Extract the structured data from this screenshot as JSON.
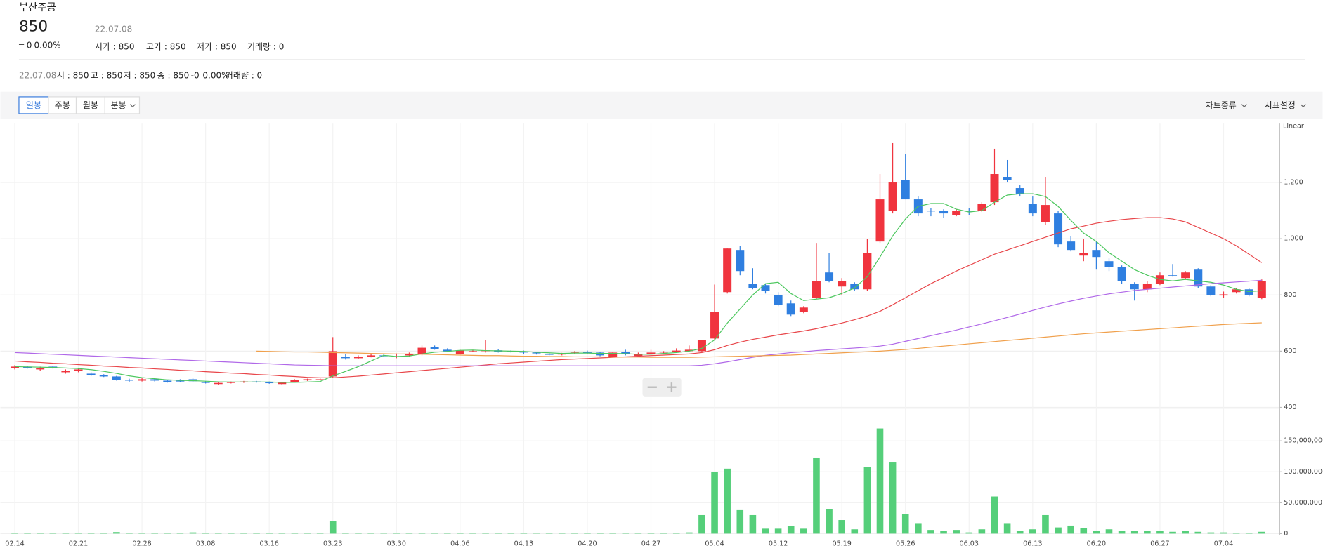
{
  "header": {
    "name": "부산주공",
    "price": "850",
    "change": "0",
    "change_rate": "0.00%",
    "date": "22.07.08",
    "items": [
      "시가 : 850",
      "고가 : 850",
      "저가 : 850",
      "거래량 : 0"
    ]
  },
  "summary": {
    "date": "22.07.08",
    "items": [
      "시 : 850",
      "고 : 850",
      "저 : 850",
      "종 : 850",
      "-0",
      "0.00%",
      "거래량 : 0"
    ]
  },
  "toolbar": {
    "tabs": [
      "일봉",
      "주봉",
      "월봉",
      "분봉"
    ],
    "menus": [
      "차트종류",
      "지표설정"
    ]
  },
  "chart_data": {
    "type": "candlestick",
    "scale_label": "Linear",
    "categories": [
      "02.14",
      null,
      null,
      null,
      null,
      "02.21",
      null,
      null,
      null,
      null,
      "02.28",
      null,
      null,
      null,
      null,
      "03.08",
      null,
      null,
      null,
      null,
      "03.16",
      null,
      null,
      null,
      null,
      "03.23",
      null,
      null,
      null,
      null,
      "03.30",
      null,
      null,
      null,
      null,
      "04.06",
      null,
      null,
      null,
      null,
      "04.13",
      null,
      null,
      null,
      null,
      "04.20",
      null,
      null,
      null,
      null,
      "04.27",
      null,
      null,
      null,
      null,
      "05.04",
      null,
      null,
      null,
      null,
      "05.12",
      null,
      null,
      null,
      null,
      "05.19",
      null,
      null,
      null,
      null,
      "05.26",
      null,
      null,
      null,
      null,
      "06.03",
      null,
      null,
      null,
      null,
      "06.13",
      null,
      null,
      null,
      null,
      "06.20",
      null,
      null,
      null,
      null,
      "06.27",
      null,
      null,
      null,
      null,
      "07.04",
      null,
      null,
      null
    ],
    "open": [
      540,
      545,
      535,
      545,
      525,
      530,
      520,
      515,
      510,
      498,
      495,
      500,
      495,
      495,
      500,
      490,
      483,
      487,
      490,
      492,
      490,
      483,
      490,
      496,
      498,
      510,
      580,
      575,
      580,
      585,
      580,
      585,
      590,
      615,
      605,
      590,
      600,
      600,
      603,
      600,
      598,
      595,
      590,
      588,
      595,
      598,
      595,
      580,
      598,
      583,
      590,
      595,
      598,
      600,
      600,
      645,
      810,
      960,
      840,
      835,
      800,
      770,
      740,
      790,
      880,
      830,
      840,
      820,
      990,
      1100,
      1210,
      1140,
      1100,
      1098,
      1085,
      1100,
      1100,
      1130,
      1220,
      1180,
      1125,
      1060,
      1090,
      990,
      940,
      960,
      920,
      900,
      840,
      820,
      840,
      870,
      860,
      890,
      830,
      798,
      810,
      820,
      790
    ],
    "high": [
      550,
      548,
      545,
      548,
      535,
      540,
      525,
      518,
      512,
      502,
      505,
      502,
      498,
      500,
      505,
      493,
      490,
      492,
      494,
      494,
      492,
      490,
      500,
      502,
      505,
      650,
      590,
      585,
      590,
      590,
      592,
      595,
      620,
      620,
      610,
      605,
      605,
      640,
      606,
      603,
      602,
      598,
      595,
      594,
      600,
      602,
      598,
      598,
      605,
      595,
      605,
      600,
      610,
      620,
      640,
      837,
      965,
      975,
      895,
      840,
      810,
      780,
      760,
      985,
      950,
      860,
      845,
      1000,
      1230,
      1340,
      1300,
      1150,
      1110,
      1105,
      1105,
      1110,
      1130,
      1320,
      1280,
      1190,
      1150,
      1220,
      1100,
      1010,
      1000,
      990,
      930,
      905,
      845,
      850,
      880,
      910,
      885,
      895,
      835,
      812,
      825,
      825,
      855
    ],
    "low": [
      535,
      538,
      530,
      538,
      520,
      525,
      512,
      508,
      495,
      490,
      492,
      492,
      488,
      490,
      490,
      485,
      480,
      485,
      487,
      488,
      484,
      481,
      488,
      494,
      496,
      505,
      570,
      572,
      578,
      580,
      575,
      580,
      585,
      605,
      598,
      588,
      596,
      595,
      595,
      595,
      590,
      588,
      585,
      585,
      590,
      590,
      582,
      578,
      585,
      580,
      588,
      590,
      595,
      598,
      595,
      640,
      805,
      870,
      820,
      805,
      760,
      725,
      735,
      785,
      845,
      800,
      815,
      815,
      985,
      1090,
      1140,
      1080,
      1080,
      1075,
      1080,
      1085,
      1095,
      1120,
      1200,
      1150,
      1080,
      1050,
      970,
      955,
      920,
      890,
      885,
      840,
      780,
      810,
      835,
      865,
      855,
      825,
      795,
      790,
      805,
      795,
      785
    ],
    "close": [
      545,
      540,
      540,
      540,
      530,
      535,
      515,
      510,
      498,
      495,
      500,
      495,
      490,
      492,
      493,
      488,
      487,
      490,
      492,
      490,
      486,
      488,
      498,
      500,
      500,
      600,
      575,
      580,
      585,
      583,
      582,
      590,
      612,
      608,
      600,
      602,
      600,
      603,
      598,
      597,
      595,
      592,
      588,
      592,
      598,
      594,
      585,
      595,
      590,
      590,
      595,
      598,
      602,
      605,
      640,
      740,
      965,
      885,
      825,
      815,
      765,
      730,
      755,
      850,
      850,
      850,
      820,
      950,
      1140,
      1200,
      1140,
      1090,
      1098,
      1090,
      1100,
      1098,
      1125,
      1230,
      1210,
      1160,
      1090,
      1120,
      980,
      960,
      950,
      935,
      900,
      850,
      820,
      840,
      870,
      868,
      880,
      830,
      800,
      802,
      820,
      800,
      850
    ],
    "up_color": "#f0343e",
    "down_color": "#2f7fe0",
    "volume": {
      "color": "#55cf7a",
      "axis": "y2",
      "values": [
        1000000,
        800000,
        900000,
        700000,
        1200000,
        900000,
        1100000,
        1500000,
        2500000,
        1500000,
        1000000,
        1200000,
        800000,
        900000,
        2000000,
        1000000,
        800000,
        900000,
        700000,
        800000,
        900000,
        1000000,
        1500000,
        1200000,
        1500000,
        20000000,
        1500000,
        600000,
        500000,
        400000,
        700000,
        800000,
        1200000,
        1000000,
        800000,
        600000,
        900000,
        700000,
        600000,
        500000,
        500000,
        400000,
        600000,
        500000,
        700000,
        800000,
        600000,
        500000,
        900000,
        700000,
        1000000,
        800000,
        1200000,
        2000000,
        30000000,
        100000000,
        105000000,
        38000000,
        30000000,
        8000000,
        8000000,
        12000000,
        8000000,
        123000000,
        40000000,
        22000000,
        7000000,
        108000000,
        170000000,
        115000000,
        32000000,
        17000000,
        6000000,
        5000000,
        6000000,
        2000000,
        7000000,
        60000000,
        17000000,
        5000000,
        7000000,
        30000000,
        10000000,
        13000000,
        9000000,
        5000000,
        7000000,
        4000000,
        5000000,
        4000000,
        4000000,
        3000000,
        4000000,
        3000000,
        2000000,
        2000000,
        1000000,
        1000000,
        3000000
      ]
    },
    "series": [
      {
        "color": "#4cc75e",
        "values": [
          545,
          544,
          543,
          542,
          540,
          538,
          534,
          528,
          521,
          512,
          506,
          502,
          498,
          496,
          495,
          493,
          491,
          490,
          490,
          490,
          490,
          489,
          489,
          490,
          492,
          512,
          528,
          545,
          565,
          585,
          581,
          583,
          590,
          596,
          599,
          603,
          604,
          602,
          601,
          600,
          599,
          596,
          594,
          592,
          593,
          593,
          592,
          592,
          591,
          589,
          589,
          592,
          595,
          600,
          610,
          640,
          700,
          750,
          800,
          840,
          845,
          805,
          780,
          785,
          790,
          805,
          825,
          865,
          935,
          1010,
          1070,
          1115,
          1125,
          1125,
          1105,
          1095,
          1100,
          1130,
          1155,
          1160,
          1160,
          1150,
          1115,
          1065,
          1020,
          990,
          950,
          920,
          890,
          870,
          855,
          850,
          855,
          850,
          845,
          835,
          820,
          812,
          815
        ]
      },
      {
        "color": "#e8464a",
        "values": [
          565,
          562,
          560,
          557,
          555,
          552,
          550,
          547,
          545,
          542,
          540,
          537,
          535,
          532,
          530,
          527,
          525,
          522,
          520,
          517,
          515,
          512,
          510,
          507,
          505,
          505,
          508,
          511,
          515,
          519,
          523,
          527,
          531,
          535,
          539,
          543,
          547,
          551,
          555,
          558,
          561,
          564,
          567,
          570,
          572,
          574,
          576,
          578,
          580,
          582,
          584,
          586,
          588,
          590,
          595,
          605,
          620,
          632,
          642,
          650,
          658,
          665,
          672,
          680,
          690,
          700,
          712,
          725,
          742,
          765,
          790,
          815,
          840,
          862,
          885,
          905,
          925,
          945,
          960,
          975,
          990,
          1005,
          1020,
          1035,
          1045,
          1055,
          1062,
          1068,
          1072,
          1075,
          1075,
          1070,
          1060,
          1040,
          1020,
          1000,
          975,
          945,
          915
        ]
      },
      {
        "color": "#b068e8",
        "values": [
          595,
          593,
          591,
          589,
          587,
          585,
          583,
          581,
          579,
          577,
          575,
          573,
          571,
          569,
          567,
          565,
          563,
          561,
          559,
          557,
          555,
          553,
          551,
          550,
          549,
          548,
          548,
          548,
          548,
          548,
          548,
          548,
          548,
          548,
          548,
          548,
          548,
          548,
          548,
          548,
          548,
          548,
          548,
          548,
          548,
          548,
          548,
          548,
          548,
          548,
          548,
          548,
          548,
          548,
          550,
          555,
          562,
          570,
          578,
          585,
          590,
          595,
          598,
          602,
          605,
          608,
          611,
          614,
          618,
          625,
          635,
          645,
          655,
          665,
          675,
          686,
          697,
          708,
          720,
          732,
          745,
          757,
          768,
          778,
          788,
          796,
          804,
          810,
          816,
          820,
          824,
          828,
          832,
          836,
          840,
          843,
          846,
          849,
          852
        ]
      },
      {
        "color": "#f0a04c",
        "values": [
          null,
          null,
          null,
          null,
          null,
          null,
          null,
          null,
          null,
          null,
          null,
          null,
          null,
          null,
          null,
          null,
          null,
          null,
          null,
          600,
          599,
          598,
          597,
          597,
          596,
          595,
          594,
          593,
          592,
          591,
          590,
          590,
          589,
          588,
          587,
          586,
          585,
          584,
          584,
          583,
          582,
          582,
          581,
          581,
          580,
          580,
          580,
          579,
          579,
          579,
          578,
          578,
          578,
          578,
          579,
          580,
          581,
          582,
          583,
          584,
          585,
          586,
          588,
          590,
          592,
          594,
          596,
          598,
          600,
          603,
          606,
          610,
          614,
          618,
          622,
          626,
          630,
          634,
          638,
          642,
          646,
          650,
          654,
          658,
          662,
          665,
          668,
          671,
          674,
          677,
          680,
          683,
          686,
          689,
          692,
          695,
          697,
          699,
          701
        ]
      }
    ],
    "ylim": [
      400,
      1400
    ],
    "yticks": [
      400,
      600,
      800,
      {
        "value": 1000,
        "label": "1,000"
      },
      {
        "value": 1200,
        "label": "1,200"
      }
    ],
    "y2lim": [
      0,
      200000000
    ],
    "y2ticks": [
      0,
      {
        "value": 50000000,
        "label": "50,000,000"
      },
      {
        "value": 100000000,
        "label": "100,000,000"
      },
      {
        "value": 150000000,
        "label": "150,000,000"
      }
    ],
    "grid": true
  }
}
